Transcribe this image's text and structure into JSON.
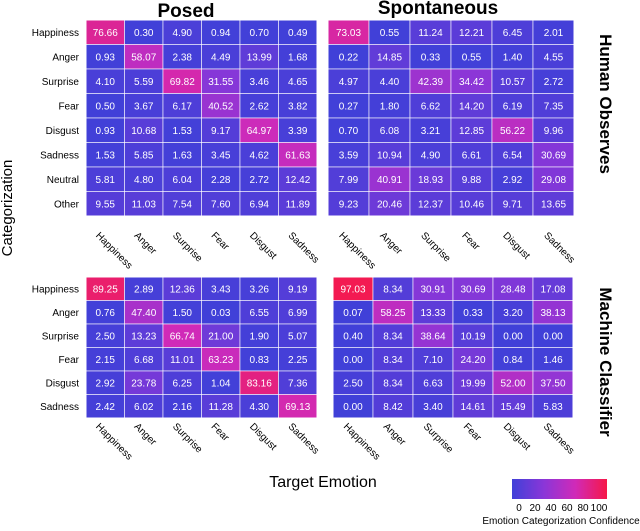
{
  "chart_data": [
    {
      "type": "heatmap",
      "title": "Posed",
      "row_group": "Human Observes",
      "x": [
        "Happiness",
        "Anger",
        "Surprise",
        "Fear",
        "Disgust",
        "Sadness"
      ],
      "y": [
        "Happiness",
        "Anger",
        "Surprise",
        "Fear",
        "Disgust",
        "Sadness",
        "Neutral",
        "Other"
      ],
      "values": [
        [
          76.66,
          0.3,
          4.9,
          0.94,
          0.7,
          0.49
        ],
        [
          0.93,
          58.07,
          2.38,
          4.49,
          13.99,
          1.68
        ],
        [
          4.1,
          5.59,
          69.82,
          31.55,
          3.46,
          4.65
        ],
        [
          0.5,
          3.67,
          6.17,
          40.52,
          2.62,
          3.82
        ],
        [
          0.93,
          10.68,
          1.53,
          9.17,
          64.97,
          3.39
        ],
        [
          1.53,
          5.85,
          1.63,
          3.45,
          4.62,
          61.63
        ],
        [
          5.81,
          4.8,
          6.04,
          2.28,
          2.72,
          12.42
        ],
        [
          9.55,
          11.03,
          7.54,
          7.6,
          6.94,
          11.89
        ]
      ]
    },
    {
      "type": "heatmap",
      "title": "Spontaneous",
      "row_group": "Human Observes",
      "x": [
        "Happiness",
        "Anger",
        "Surprise",
        "Fear",
        "Disgust",
        "Sadness"
      ],
      "y": [
        "Happiness",
        "Anger",
        "Surprise",
        "Fear",
        "Disgust",
        "Sadness",
        "Neutral",
        "Other"
      ],
      "values": [
        [
          73.03,
          0.55,
          11.24,
          12.21,
          6.45,
          2.01
        ],
        [
          0.22,
          14.85,
          0.33,
          0.55,
          1.4,
          4.55
        ],
        [
          4.97,
          4.4,
          42.39,
          34.42,
          10.57,
          2.72
        ],
        [
          0.27,
          1.8,
          6.62,
          14.2,
          6.19,
          7.35
        ],
        [
          0.7,
          6.08,
          3.21,
          12.85,
          56.22,
          9.96
        ],
        [
          3.59,
          10.94,
          4.9,
          6.61,
          6.54,
          30.69
        ],
        [
          7.99,
          40.91,
          18.93,
          9.88,
          2.92,
          29.08
        ],
        [
          9.23,
          20.46,
          12.37,
          10.46,
          9.71,
          13.65
        ]
      ]
    },
    {
      "type": "heatmap",
      "title": "Posed",
      "row_group": "Machine Classifier",
      "x": [
        "Happiness",
        "Anger",
        "Surprise",
        "Fear",
        "Disgust",
        "Sadness"
      ],
      "y": [
        "Happiness",
        "Anger",
        "Surprise",
        "Fear",
        "Disgust",
        "Sadness"
      ],
      "values": [
        [
          89.25,
          2.89,
          12.36,
          3.43,
          3.26,
          9.19
        ],
        [
          0.76,
          47.4,
          1.5,
          0.03,
          6.55,
          6.99
        ],
        [
          2.5,
          13.23,
          66.74,
          21.0,
          1.9,
          5.07
        ],
        [
          2.15,
          6.68,
          11.01,
          63.23,
          0.83,
          2.25
        ],
        [
          2.92,
          23.78,
          6.25,
          1.04,
          83.16,
          7.36
        ],
        [
          2.42,
          6.02,
          2.16,
          11.28,
          4.3,
          69.13
        ]
      ]
    },
    {
      "type": "heatmap",
      "title": "Spontaneous",
      "row_group": "Machine Classifier",
      "x": [
        "Happiness",
        "Anger",
        "Surprise",
        "Fear",
        "Disgust",
        "Sadness"
      ],
      "y": [
        "Happiness",
        "Anger",
        "Surprise",
        "Fear",
        "Disgust",
        "Sadness"
      ],
      "values": [
        [
          97.03,
          8.34,
          30.91,
          30.69,
          28.48,
          17.08
        ],
        [
          0.07,
          58.25,
          13.33,
          0.33,
          3.2,
          38.13
        ],
        [
          0.4,
          8.34,
          38.64,
          10.19,
          0.0,
          0.0
        ],
        [
          0.0,
          8.34,
          7.1,
          24.2,
          0.84,
          1.46
        ],
        [
          2.5,
          8.34,
          6.63,
          19.99,
          52.0,
          37.5
        ],
        [
          0.0,
          8.42,
          3.4,
          14.61,
          15.49,
          5.83
        ]
      ]
    }
  ],
  "labels": {
    "col_titles": [
      "Posed",
      "Spontaneous"
    ],
    "row_groups": [
      "Human Observes",
      "Machine Classifier"
    ],
    "xlabel": "Target Emotion",
    "ylabel": "Categorization"
  },
  "colorbar": {
    "ticks": [
      "0",
      "20",
      "40",
      "60",
      "80",
      "100"
    ],
    "range": [
      0,
      100
    ],
    "label": "Emotion Categorization Confidence",
    "colors": [
      "#4040d8",
      "#8a36d8",
      "#d02ab8",
      "#f61848"
    ]
  },
  "colors": {
    "text_on_cell": "#ffffff",
    "cell_border": "#ffffff",
    "axis_text": "#000000"
  }
}
